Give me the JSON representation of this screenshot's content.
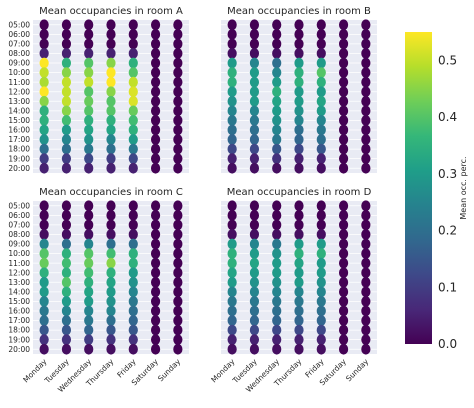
{
  "chart_data": {
    "type": "heatmap",
    "hours": [
      "05:00",
      "06:00",
      "07:00",
      "08:00",
      "09:00",
      "10:00",
      "11:00",
      "12:00",
      "13:00",
      "14:00",
      "15:00",
      "16:00",
      "17:00",
      "18:00",
      "19:00",
      "20:00"
    ],
    "days": [
      "Monday",
      "Tuesday",
      "Wednesday",
      "Thursday",
      "Friday",
      "Saturday",
      "Sunday"
    ],
    "colorbar": {
      "label": "Mean occ. perc.",
      "range": [
        0.0,
        0.55
      ],
      "ticks": [
        "0.0",
        "0.1",
        "0.2",
        "0.3",
        "0.4",
        "0.5"
      ]
    },
    "panels": [
      {
        "title": "Mean occupancies in room  A",
        "values": [
          [
            0.0,
            0.0,
            0.0,
            0.0,
            0.0,
            0.0,
            0.0
          ],
          [
            0.0,
            0.0,
            0.0,
            0.0,
            0.0,
            0.0,
            0.0
          ],
          [
            0.0,
            0.0,
            0.0,
            0.0,
            0.0,
            0.0,
            0.0
          ],
          [
            0.05,
            0.05,
            0.05,
            0.05,
            0.05,
            0.0,
            0.0
          ],
          [
            0.55,
            0.35,
            0.4,
            0.45,
            0.35,
            0.0,
            0.0
          ],
          [
            0.5,
            0.45,
            0.45,
            0.55,
            0.4,
            0.0,
            0.0
          ],
          [
            0.48,
            0.5,
            0.5,
            0.55,
            0.5,
            0.0,
            0.0
          ],
          [
            0.55,
            0.5,
            0.4,
            0.45,
            0.52,
            0.0,
            0.0
          ],
          [
            0.45,
            0.5,
            0.42,
            0.4,
            0.52,
            0.0,
            0.0
          ],
          [
            0.35,
            0.45,
            0.4,
            0.4,
            0.42,
            0.0,
            0.0
          ],
          [
            0.35,
            0.38,
            0.35,
            0.35,
            0.38,
            0.0,
            0.0
          ],
          [
            0.32,
            0.3,
            0.32,
            0.32,
            0.35,
            0.0,
            0.0
          ],
          [
            0.28,
            0.25,
            0.28,
            0.25,
            0.3,
            0.0,
            0.0
          ],
          [
            0.2,
            0.2,
            0.22,
            0.2,
            0.22,
            0.0,
            0.0
          ],
          [
            0.1,
            0.1,
            0.12,
            0.1,
            0.12,
            0.0,
            0.0
          ],
          [
            0.05,
            0.05,
            0.05,
            0.05,
            0.05,
            0.0,
            0.0
          ]
        ]
      },
      {
        "title": "Mean occupancies in room  B",
        "values": [
          [
            0.0,
            0.0,
            0.0,
            0.0,
            0.0,
            0.0,
            0.0
          ],
          [
            0.0,
            0.0,
            0.0,
            0.0,
            0.0,
            0.0,
            0.0
          ],
          [
            0.0,
            0.0,
            0.0,
            0.0,
            0.0,
            0.0,
            0.0
          ],
          [
            0.02,
            0.02,
            0.02,
            0.02,
            0.02,
            0.0,
            0.0
          ],
          [
            0.3,
            0.25,
            0.2,
            0.3,
            0.3,
            0.0,
            0.0
          ],
          [
            0.35,
            0.3,
            0.25,
            0.35,
            0.4,
            0.0,
            0.0
          ],
          [
            0.35,
            0.3,
            0.3,
            0.35,
            0.35,
            0.0,
            0.0
          ],
          [
            0.3,
            0.3,
            0.35,
            0.3,
            0.3,
            0.0,
            0.0
          ],
          [
            0.28,
            0.3,
            0.32,
            0.3,
            0.32,
            0.0,
            0.0
          ],
          [
            0.25,
            0.25,
            0.3,
            0.28,
            0.3,
            0.0,
            0.0
          ],
          [
            0.22,
            0.22,
            0.28,
            0.25,
            0.25,
            0.0,
            0.0
          ],
          [
            0.2,
            0.2,
            0.25,
            0.2,
            0.22,
            0.0,
            0.0
          ],
          [
            0.18,
            0.18,
            0.22,
            0.18,
            0.2,
            0.0,
            0.0
          ],
          [
            0.12,
            0.12,
            0.15,
            0.12,
            0.15,
            0.0,
            0.0
          ],
          [
            0.05,
            0.05,
            0.08,
            0.05,
            0.05,
            0.0,
            0.0
          ],
          [
            0.02,
            0.02,
            0.02,
            0.02,
            0.02,
            0.0,
            0.0
          ]
        ]
      },
      {
        "title": "Mean occupancies in room  C",
        "values": [
          [
            0.0,
            0.0,
            0.0,
            0.0,
            0.0,
            0.0,
            0.0
          ],
          [
            0.0,
            0.0,
            0.0,
            0.0,
            0.0,
            0.0,
            0.0
          ],
          [
            0.0,
            0.0,
            0.0,
            0.0,
            0.0,
            0.0,
            0.0
          ],
          [
            0.02,
            0.02,
            0.02,
            0.02,
            0.02,
            0.0,
            0.0
          ],
          [
            0.25,
            0.2,
            0.25,
            0.2,
            0.2,
            0.0,
            0.0
          ],
          [
            0.4,
            0.35,
            0.4,
            0.38,
            0.35,
            0.0,
            0.0
          ],
          [
            0.42,
            0.38,
            0.42,
            0.45,
            0.35,
            0.0,
            0.0
          ],
          [
            0.35,
            0.35,
            0.38,
            0.35,
            0.3,
            0.0,
            0.0
          ],
          [
            0.3,
            0.4,
            0.35,
            0.32,
            0.28,
            0.0,
            0.0
          ],
          [
            0.3,
            0.35,
            0.32,
            0.3,
            0.25,
            0.0,
            0.0
          ],
          [
            0.25,
            0.3,
            0.3,
            0.28,
            0.22,
            0.0,
            0.0
          ],
          [
            0.22,
            0.25,
            0.25,
            0.25,
            0.2,
            0.0,
            0.0
          ],
          [
            0.2,
            0.2,
            0.22,
            0.2,
            0.18,
            0.0,
            0.0
          ],
          [
            0.15,
            0.15,
            0.18,
            0.15,
            0.15,
            0.0,
            0.0
          ],
          [
            0.08,
            0.08,
            0.1,
            0.08,
            0.08,
            0.0,
            0.0
          ],
          [
            0.02,
            0.02,
            0.02,
            0.02,
            0.02,
            0.0,
            0.0
          ]
        ]
      },
      {
        "title": "Mean occupancies in room  D",
        "values": [
          [
            0.0,
            0.0,
            0.0,
            0.0,
            0.0,
            0.0,
            0.0
          ],
          [
            0.0,
            0.0,
            0.0,
            0.0,
            0.0,
            0.0,
            0.0
          ],
          [
            0.0,
            0.0,
            0.0,
            0.0,
            0.0,
            0.0,
            0.0
          ],
          [
            0.02,
            0.02,
            0.02,
            0.02,
            0.02,
            0.0,
            0.0
          ],
          [
            0.3,
            0.25,
            0.22,
            0.3,
            0.3,
            0.0,
            0.0
          ],
          [
            0.35,
            0.3,
            0.28,
            0.35,
            0.35,
            0.0,
            0.0
          ],
          [
            0.35,
            0.32,
            0.3,
            0.32,
            0.3,
            0.0,
            0.0
          ],
          [
            0.32,
            0.3,
            0.3,
            0.3,
            0.3,
            0.0,
            0.0
          ],
          [
            0.3,
            0.28,
            0.28,
            0.3,
            0.28,
            0.0,
            0.0
          ],
          [
            0.25,
            0.25,
            0.25,
            0.25,
            0.25,
            0.0,
            0.0
          ],
          [
            0.22,
            0.22,
            0.22,
            0.22,
            0.22,
            0.0,
            0.0
          ],
          [
            0.2,
            0.2,
            0.2,
            0.2,
            0.2,
            0.0,
            0.0
          ],
          [
            0.18,
            0.18,
            0.18,
            0.18,
            0.18,
            0.0,
            0.0
          ],
          [
            0.12,
            0.12,
            0.12,
            0.12,
            0.12,
            0.0,
            0.0
          ],
          [
            0.05,
            0.05,
            0.05,
            0.05,
            0.05,
            0.0,
            0.0
          ],
          [
            0.02,
            0.02,
            0.02,
            0.02,
            0.02,
            0.0,
            0.0
          ]
        ]
      }
    ]
  },
  "colors": {
    "panel_background": "#e9ebf4",
    "grid": "#ffffff",
    "viridis": [
      "#440154",
      "#482878",
      "#3e4989",
      "#31688e",
      "#26828e",
      "#1f9e89",
      "#35b779",
      "#6ece58",
      "#b5de2b",
      "#fde725"
    ]
  }
}
